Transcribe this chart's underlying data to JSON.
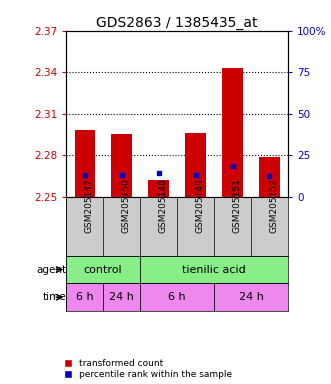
{
  "title": "GDS2863 / 1385435_at",
  "samples": [
    "GSM205147",
    "GSM205150",
    "GSM205148",
    "GSM205149",
    "GSM205151",
    "GSM205152"
  ],
  "bar_bottoms": [
    2.25,
    2.25,
    2.25,
    2.25,
    2.25,
    2.25
  ],
  "bar_tops": [
    2.298,
    2.295,
    2.262,
    2.296,
    2.343,
    2.279
  ],
  "blue_values": [
    2.2655,
    2.2655,
    2.267,
    2.2655,
    2.272,
    2.265
  ],
  "ymin": 2.25,
  "ymax": 2.37,
  "yticks_left": [
    2.25,
    2.28,
    2.31,
    2.34,
    2.37
  ],
  "yticks_right_vals": [
    2.25,
    2.28,
    2.31,
    2.34,
    2.37
  ],
  "yticks_right_labels": [
    "0",
    "25",
    "50",
    "75",
    "100%"
  ],
  "bar_color": "#cc0000",
  "blue_color": "#0000cc",
  "bar_width": 0.55,
  "agent_labels": [
    "control",
    "tienilic acid"
  ],
  "agent_col_starts": [
    0,
    2
  ],
  "agent_col_ends": [
    2,
    6
  ],
  "agent_color": "#88ee88",
  "time_labels": [
    "6 h",
    "24 h",
    "6 h",
    "24 h"
  ],
  "time_col_starts": [
    0,
    1,
    2,
    4
  ],
  "time_col_ends": [
    1,
    2,
    4,
    6
  ],
  "time_color": "#ee88ee",
  "legend_red": "transformed count",
  "legend_blue": "percentile rank within the sample",
  "title_fontsize": 10,
  "tick_fontsize": 7.5,
  "sample_tick_fontsize": 6.5,
  "section_fontsize": 8,
  "left_label_color": "#cc0000",
  "right_label_color": "#0000cc",
  "bg_color": "#ffffff",
  "plot_bg_color": "#ffffff",
  "sample_bg_color": "#cccccc"
}
